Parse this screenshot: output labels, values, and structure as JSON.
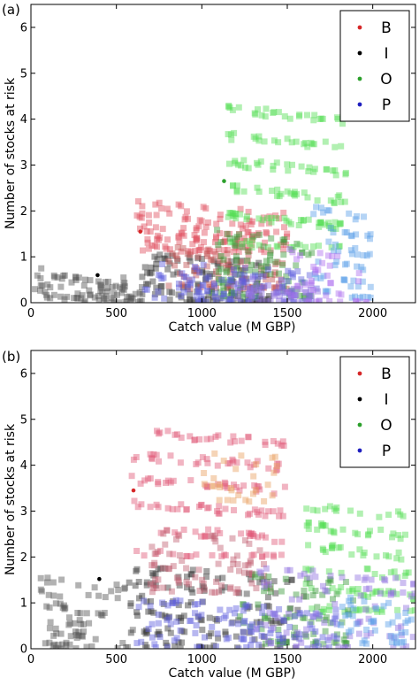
{
  "chart_data": [
    {
      "type": "scatter",
      "panel_label": "(a)",
      "xlabel": "Catch value (M GBP)",
      "ylabel": "Number of stocks at risk",
      "xlim": [
        0,
        2250
      ],
      "ylim": [
        0,
        6.5
      ],
      "xticks": [
        0,
        500,
        1000,
        1500,
        2000
      ],
      "xtick_labels": [
        "0",
        "500",
        "1000",
        "1500",
        "2000"
      ],
      "yticks": [
        0,
        1,
        2,
        3,
        4,
        5,
        6
      ],
      "ytick_labels": [
        "0",
        "1",
        "2",
        "3",
        "4",
        "5",
        "6"
      ],
      "legend_position": "top-right",
      "legend": [
        {
          "label": "B",
          "color": "#d62728"
        },
        {
          "label": "I",
          "color": "#000000"
        },
        {
          "label": "O",
          "color": "#2ca02c"
        },
        {
          "label": "P",
          "color": "#1f1fbf"
        }
      ],
      "point_style": "translucent squares",
      "highlighted_points": [
        {
          "series": "B",
          "x": 640,
          "y": 1.55
        },
        {
          "series": "I",
          "x": 390,
          "y": 0.6
        },
        {
          "series": "O",
          "x": 1130,
          "y": 2.65
        }
      ],
      "clusters": [
        {
          "series": "I",
          "color": "#555555",
          "x_range": [
            20,
            650
          ],
          "y_range": [
            0,
            0.55
          ],
          "n": 90
        },
        {
          "series": "I",
          "color": "#333333",
          "x_range": [
            650,
            1400
          ],
          "y_range": [
            0,
            0.9
          ],
          "n": 120
        },
        {
          "series": "B",
          "color": "#e05060",
          "x_range": [
            620,
            1500
          ],
          "y_range": [
            1.1,
            2.0
          ],
          "n": 140
        },
        {
          "series": "B",
          "color": "#c05050",
          "x_range": [
            800,
            1500
          ],
          "y_range": [
            0.3,
            1.1
          ],
          "n": 80
        },
        {
          "series": "O",
          "color": "#55dd55",
          "x_range": [
            1150,
            1850
          ],
          "y_range": [
            1.2,
            4.1
          ],
          "n": 170
        },
        {
          "series": "O",
          "color": "#3a9a3a",
          "x_range": [
            1050,
            1650
          ],
          "y_range": [
            0.1,
            1.4
          ],
          "n": 90
        },
        {
          "series": "P",
          "color": "#6060dd",
          "x_range": [
            650,
            1700
          ],
          "y_range": [
            0,
            0.7
          ],
          "n": 110
        },
        {
          "series": "P",
          "color": "#9070e0",
          "x_range": [
            1200,
            1700
          ],
          "y_range": [
            0,
            0.4
          ],
          "n": 50
        },
        {
          "series": "P",
          "color": "#5aa0e8",
          "x_range": [
            1650,
            2000
          ],
          "y_range": [
            0.1,
            1.9
          ],
          "n": 60
        },
        {
          "series": "P",
          "color": "#b070f0",
          "x_range": [
            1500,
            2000
          ],
          "y_range": [
            0,
            1.0
          ],
          "n": 40
        }
      ]
    },
    {
      "type": "scatter",
      "panel_label": "(b)",
      "xlabel": "Catch value (M GBP)",
      "ylabel": "Number of stocks at risk",
      "xlim": [
        0,
        2250
      ],
      "ylim": [
        0,
        6.5
      ],
      "xticks": [
        0,
        500,
        1000,
        1500,
        2000
      ],
      "xtick_labels": [
        "0",
        "500",
        "1000",
        "1500",
        "2000"
      ],
      "yticks": [
        0,
        1,
        2,
        3,
        4,
        5,
        6
      ],
      "ytick_labels": [
        "0",
        "1",
        "2",
        "3",
        "4",
        "5",
        "6"
      ],
      "legend_position": "top-right",
      "legend": [
        {
          "label": "B",
          "color": "#d62728"
        },
        {
          "label": "I",
          "color": "#000000"
        },
        {
          "label": "O",
          "color": "#2ca02c"
        },
        {
          "label": "P",
          "color": "#1f1fbf"
        }
      ],
      "point_style": "translucent squares",
      "highlighted_points": [
        {
          "series": "B",
          "x": 600,
          "y": 3.45
        },
        {
          "series": "I",
          "x": 400,
          "y": 1.52
        }
      ],
      "clusters": [
        {
          "series": "I",
          "color": "#555555",
          "x_range": [
            50,
            600
          ],
          "y_range": [
            0,
            1.4
          ],
          "n": 80
        },
        {
          "series": "I",
          "color": "#333333",
          "x_range": [
            550,
            1600
          ],
          "y_range": [
            0,
            1.6
          ],
          "n": 140
        },
        {
          "series": "B",
          "color": "#e05878",
          "x_range": [
            580,
            1500
          ],
          "y_range": [
            2.0,
            4.6
          ],
          "n": 170
        },
        {
          "series": "B",
          "color": "#c06070",
          "x_range": [
            700,
            1400
          ],
          "y_range": [
            1.2,
            2.4
          ],
          "n": 80
        },
        {
          "series": "B",
          "color": "#e8a060",
          "x_range": [
            1000,
            1450
          ],
          "y_range": [
            3.2,
            4.3
          ],
          "n": 30
        },
        {
          "series": "O",
          "color": "#55dd55",
          "x_range": [
            1600,
            2250
          ],
          "y_range": [
            0.8,
            3.0
          ],
          "n": 120
        },
        {
          "series": "O",
          "color": "#3a9a3a",
          "x_range": [
            1200,
            1900
          ],
          "y_range": [
            0.1,
            1.5
          ],
          "n": 80
        },
        {
          "series": "P",
          "color": "#6060dd",
          "x_range": [
            600,
            1800
          ],
          "y_range": [
            0,
            0.9
          ],
          "n": 120
        },
        {
          "series": "P",
          "color": "#9070e0",
          "x_range": [
            1300,
            2250
          ],
          "y_range": [
            0,
            1.6
          ],
          "n": 90
        },
        {
          "series": "P",
          "color": "#5aa0e8",
          "x_range": [
            1800,
            2250
          ],
          "y_range": [
            0.1,
            1.0
          ],
          "n": 40
        }
      ]
    }
  ]
}
